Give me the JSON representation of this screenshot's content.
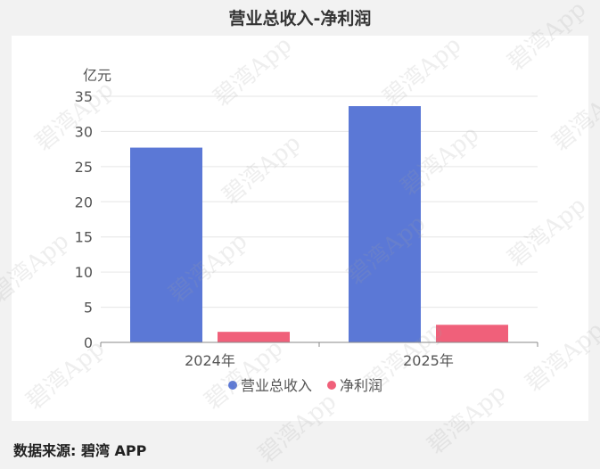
{
  "title": "营业总收入-净利润",
  "source": "数据来源: 碧湾 APP",
  "watermark": "碧湾App",
  "chart_data": {
    "type": "bar",
    "title": "营业总收入-净利润",
    "ylabel": "亿元",
    "categories": [
      "2024年",
      "2025年"
    ],
    "ylim": [
      0,
      35
    ],
    "yticks": [
      0,
      5,
      10,
      15,
      20,
      25,
      30,
      35
    ],
    "grid": true,
    "legend": "bottom",
    "series": [
      {
        "name": "营业总收入",
        "color": "#5b78d6",
        "values": [
          27.7,
          33.6
        ]
      },
      {
        "name": "净利润",
        "color": "#f0607a",
        "values": [
          1.5,
          2.5
        ]
      }
    ]
  }
}
